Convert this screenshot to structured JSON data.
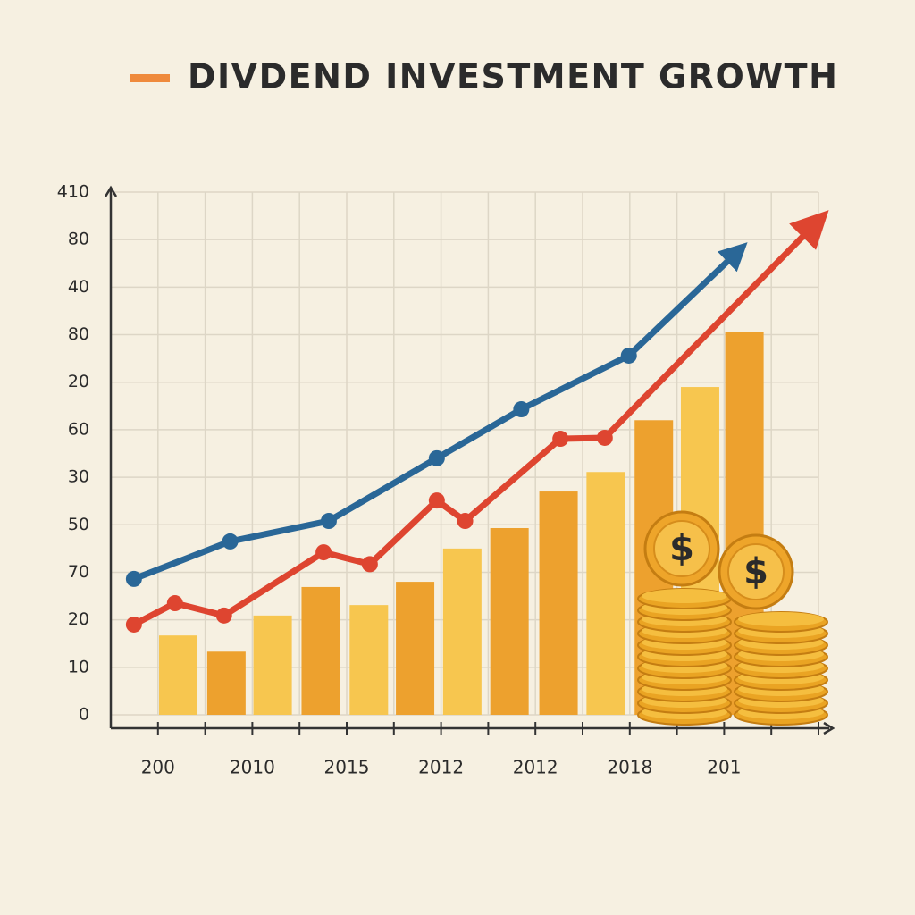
{
  "chart_data": {
    "type": "combo",
    "title": "DIVDEND INVESTMENT GROWTH",
    "title_marker_color": "#ef8a3c",
    "y_labels": [
      "0",
      "10",
      "20",
      "70",
      "50",
      "30",
      "60",
      "20",
      "80",
      "40",
      "80",
      "410"
    ],
    "yticks": [
      0,
      1,
      2,
      3,
      4,
      5,
      6,
      7,
      8,
      9,
      10,
      11
    ],
    "ylim": [
      0,
      11
    ],
    "xlim": [
      0,
      15
    ],
    "xticks": [
      1,
      2,
      3,
      4,
      5,
      6,
      7,
      8,
      9,
      10,
      11,
      12,
      13,
      14,
      15
    ],
    "x_labels": [
      "200",
      "2010",
      "2015",
      "2012",
      "2012",
      "2018",
      "201"
    ],
    "grid": true,
    "bars": {
      "x": [
        1.43,
        2.45,
        3.43,
        4.45,
        5.47,
        6.45,
        7.45,
        8.45,
        9.49,
        10.49,
        11.51,
        12.49,
        13.43
      ],
      "values": [
        1.67,
        1.33,
        2.09,
        2.69,
        2.31,
        2.8,
        3.5,
        3.93,
        4.7,
        5.11,
        6.2,
        6.9,
        8.06
      ],
      "colors": [
        "#f7c64f",
        "#eda12e",
        "#f7c64f",
        "#eda12e",
        "#f7c64f",
        "#eda12e",
        "#f7c64f",
        "#eda12e",
        "#eda12e",
        "#f7c64f",
        "#eda12e",
        "#f7c64f",
        "#eda12e"
      ]
    },
    "series": [
      {
        "color": "#2a6797",
        "x": [
          0.49,
          2.53,
          4.62,
          6.91,
          8.7,
          10.98,
          13.28
        ],
        "values": [
          2.86,
          3.65,
          4.08,
          5.4,
          6.43,
          7.56,
          9.74
        ]
      },
      {
        "color": "#de4530",
        "x": [
          0.49,
          1.36,
          2.4,
          4.51,
          5.49,
          6.91,
          7.51,
          9.53,
          10.47,
          14.94
        ],
        "values": [
          1.9,
          2.35,
          2.09,
          3.42,
          3.17,
          4.51,
          4.08,
          5.81,
          5.83,
          10.34
        ]
      }
    ],
    "coin_symbol": "$"
  }
}
